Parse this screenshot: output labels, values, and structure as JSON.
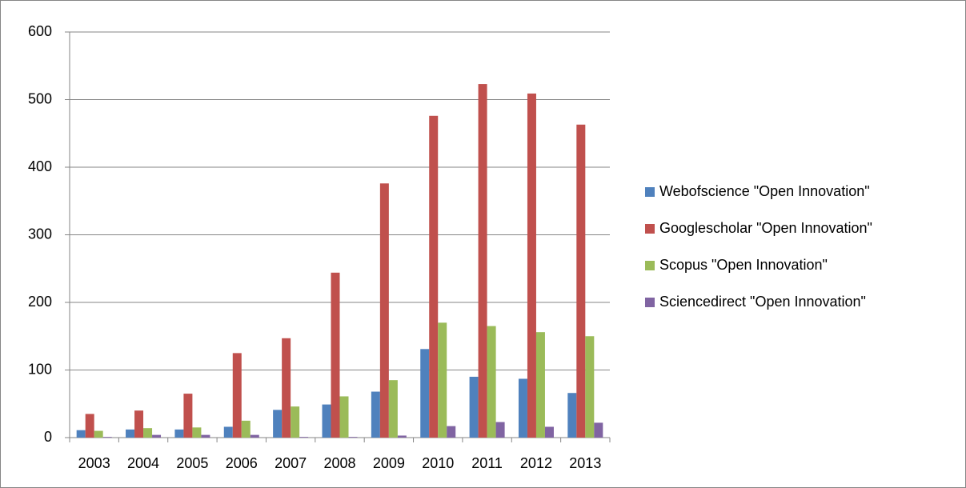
{
  "chart_data": {
    "type": "bar",
    "categories": [
      "2003",
      "2004",
      "2005",
      "2006",
      "2007",
      "2008",
      "2009",
      "2010",
      "2011",
      "2012",
      "2013"
    ],
    "series": [
      {
        "name": "Webofscience \"Open Innovation\"",
        "color": "#4f81bd",
        "values": [
          11,
          12,
          12,
          16,
          41,
          49,
          68,
          131,
          90,
          87,
          66
        ]
      },
      {
        "name": "Googlescholar \"Open Innovation\"",
        "color": "#c0504d",
        "values": [
          35,
          40,
          65,
          125,
          147,
          244,
          376,
          476,
          523,
          509,
          463
        ]
      },
      {
        "name": "Scopus \"Open Innovation\"",
        "color": "#9bbb59",
        "values": [
          10,
          14,
          15,
          25,
          46,
          61,
          85,
          170,
          165,
          156,
          150
        ]
      },
      {
        "name": "Sciencedirect \"Open Innovation\"",
        "color": "#8064a2",
        "values": [
          1,
          4,
          4,
          4,
          1,
          1,
          3,
          17,
          23,
          16,
          22
        ]
      }
    ],
    "ylim": [
      0,
      600
    ],
    "yticks": [
      0,
      100,
      200,
      300,
      400,
      500,
      600
    ],
    "grid": true,
    "legend": "right"
  }
}
